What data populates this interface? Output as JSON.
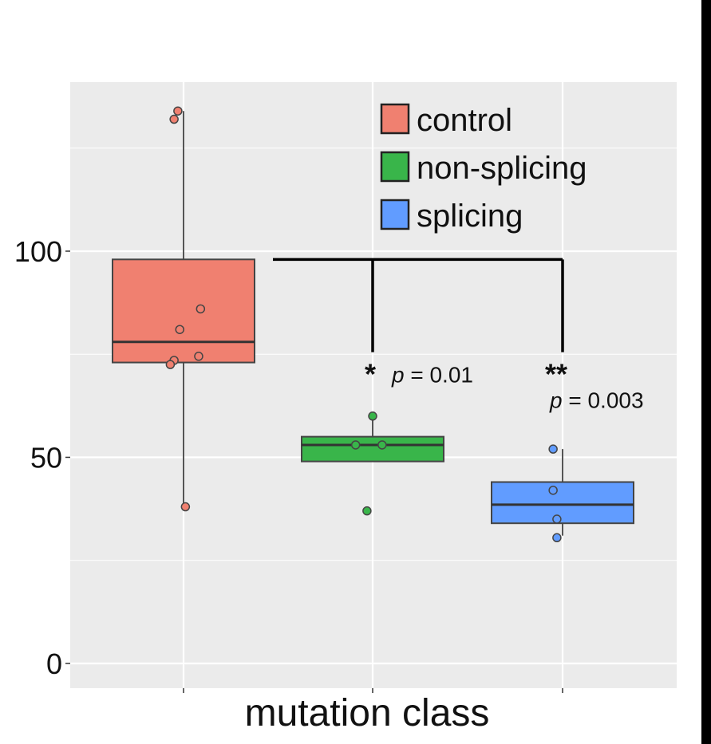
{
  "colors": {
    "panel_bg": "#ebebeb",
    "grid": "#ffffff",
    "control": "#f08070",
    "non_splicing": "#39b54a",
    "splicing": "#619cff"
  },
  "chart_data": {
    "type": "boxplot",
    "xlabel": "mutation class",
    "ylabel": "",
    "ylim": [
      -6,
      141
    ],
    "yticks": [
      0,
      50,
      100
    ],
    "ytick_labels": [
      "0",
      "50",
      "100"
    ],
    "grid": true,
    "legend_position": "top-right",
    "legend": [
      {
        "label": "control",
        "color": "#f08070"
      },
      {
        "label": "non-splicing",
        "color": "#39b54a"
      },
      {
        "label": "splicing",
        "color": "#619cff"
      }
    ],
    "groups": [
      {
        "name": "control",
        "color": "#f08070",
        "q1": 73,
        "median": 78,
        "q3": 98,
        "whisker_low": 38,
        "whisker_high": 134,
        "points": [
          {
            "dx": -0.05,
            "y": 132
          },
          {
            "dx": -0.03,
            "y": 134
          },
          {
            "dx": 0.09,
            "y": 86
          },
          {
            "dx": -0.02,
            "y": 81
          },
          {
            "dx": -0.05,
            "y": 73.5
          },
          {
            "dx": -0.07,
            "y": 72.5
          },
          {
            "dx": 0.08,
            "y": 74.5
          },
          {
            "dx": 0.01,
            "y": 38
          }
        ]
      },
      {
        "name": "non-splicing",
        "color": "#39b54a",
        "q1": 49,
        "median": 53,
        "q3": 55,
        "whisker_low": 49,
        "whisker_high": 60,
        "points": [
          {
            "dx": 0.0,
            "y": 60
          },
          {
            "dx": -0.09,
            "y": 53
          },
          {
            "dx": 0.05,
            "y": 53
          },
          {
            "dx": -0.03,
            "y": 37
          }
        ]
      },
      {
        "name": "splicing",
        "color": "#619cff",
        "q1": 34,
        "median": 38.5,
        "q3": 44,
        "whisker_low": 31,
        "whisker_high": 52,
        "points": [
          {
            "dx": -0.05,
            "y": 52
          },
          {
            "dx": -0.05,
            "y": 42
          },
          {
            "dx": -0.03,
            "y": 35
          },
          {
            "dx": -0.03,
            "y": 30.5
          }
        ]
      }
    ],
    "significance": {
      "bracket_y": 98,
      "drop_y": 75.5,
      "from_group": 0,
      "to_groups": [
        1,
        2
      ],
      "annotations": [
        {
          "group": 1,
          "stars": "*",
          "p_label": "p",
          "p_value": " = 0.01"
        },
        {
          "group": 2,
          "stars": "**",
          "p_label": "p",
          "p_value": " = 0.003"
        }
      ]
    }
  }
}
